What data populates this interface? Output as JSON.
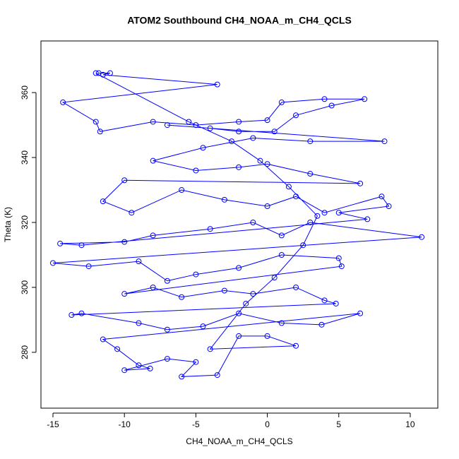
{
  "chart_data": {
    "type": "line",
    "title": "ATOM2 Southbound CH4_NOAA_m_CH4_QCLS",
    "x_label": "CH4_NOAA_m_CH4_QCLS",
    "y_label": "Theta (K)",
    "color": "#0000ff",
    "xlim": [
      -15.84,
      11.93
    ],
    "ylim": [
      262.8,
      375.9
    ],
    "xticks": [
      -15,
      -10,
      -5,
      0,
      5,
      10
    ],
    "yticks": [
      280,
      300,
      320,
      340,
      360
    ],
    "x": [
      -11.8,
      -11,
      -11.5,
      -3.5,
      -14.3,
      -12,
      -11.7,
      -8,
      -5,
      -2,
      0,
      1,
      4,
      6.8,
      4.5,
      2,
      0.5,
      -2,
      -4,
      -7,
      8.2,
      3,
      -1,
      -4.5,
      -8,
      -5,
      -2,
      0,
      3,
      6.5,
      -10,
      -11.5,
      -9.5,
      -6,
      -3,
      0,
      2,
      4,
      8,
      8.5,
      5,
      7,
      -13,
      -14.5,
      -10,
      -8,
      -4,
      -1,
      1,
      3,
      10.8,
      -15,
      -12.5,
      -9,
      -7,
      -5,
      -2,
      1,
      5,
      5.2,
      -10,
      -8,
      -6,
      -3,
      -1,
      2,
      4,
      4.8,
      -13.7,
      -13,
      -9,
      -7,
      -4.5,
      -2,
      1,
      3.8,
      6.5,
      -11.5,
      -10.5,
      -9,
      -8.2,
      -10,
      -7,
      -5,
      -6,
      -3.5,
      -2,
      0,
      2,
      -4,
      -1.5,
      0.5,
      2.5,
      3.5,
      1.5,
      -0.5,
      -2.5,
      -5.5,
      -12
    ],
    "series": [
      {
        "name": "Theta",
        "color": "#0000ff",
        "values": [
          366,
          366,
          365.5,
          362.5,
          357,
          351,
          348,
          351,
          350,
          351,
          351.5,
          357,
          358,
          358,
          356,
          353,
          348,
          348,
          349,
          350,
          345,
          345,
          346,
          343,
          339,
          336,
          337,
          338,
          335,
          332,
          333,
          326.5,
          323,
          330,
          327,
          325,
          328,
          323,
          328,
          325,
          323,
          321,
          313,
          313.5,
          314,
          316,
          318,
          320,
          316,
          320,
          315.5,
          307.5,
          306.5,
          308,
          302,
          304,
          306,
          310,
          309,
          306.5,
          298,
          300,
          297,
          299,
          298,
          300,
          296,
          295,
          291.5,
          292,
          289,
          287,
          288,
          292,
          289,
          288.5,
          292,
          284,
          281,
          276,
          275,
          274.5,
          278,
          277,
          272.5,
          273,
          285,
          285,
          282,
          281,
          295,
          303,
          313,
          322,
          331,
          339,
          345,
          351,
          366
        ]
      }
    ]
  }
}
